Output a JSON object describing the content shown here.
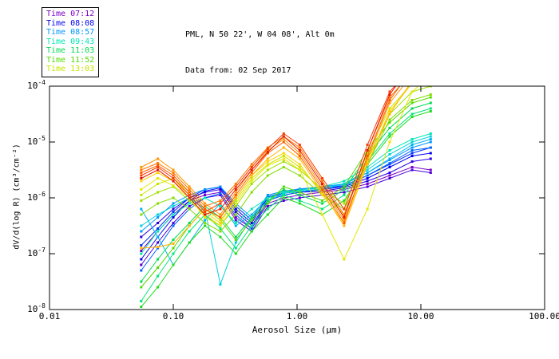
{
  "header": {
    "title": "PML, N 50 22', W 04 08', Alt 0m",
    "subtitle": "Data from: 02 Sep 2017"
  },
  "legend": {
    "entries": [
      {
        "label": "Time 07:12",
        "color": "#7A00C8"
      },
      {
        "label": "Time 08:08",
        "color": "#0000F0"
      },
      {
        "label": "Time 08:57",
        "color": "#0096FF"
      },
      {
        "label": "Time 09:43",
        "color": "#00E6B4"
      },
      {
        "label": "Time 11:03",
        "color": "#00DC50"
      },
      {
        "label": "Time 11:52",
        "color": "#50DC00"
      },
      {
        "label": "Time 13:03",
        "color": "#C8E600"
      }
    ]
  },
  "chart_data": {
    "type": "line",
    "title": "PML, N 50 22', W 04 08', Alt 0m",
    "subtitle": "Data from: 02 Sep 2017",
    "xlabel": "Aerosol Size (μm)",
    "ylabel": "dV/d(log R) (cm³/cm⁻²)",
    "x_scale": "log",
    "y_scale": "log",
    "xlim": [
      0.01,
      100.0
    ],
    "ylim": [
      1e-08,
      0.0001
    ],
    "x_tick_labels": [
      "0.01",
      "0.10",
      "1.00",
      "10.00",
      "100.00"
    ],
    "y_tick_labels": [
      "10^-4",
      "10^-5",
      "10^-6",
      "10^-7",
      "10^-8"
    ],
    "y_tick_exponents": [
      -4,
      -5,
      -6,
      -7,
      -8
    ],
    "grid": false,
    "legend_position": "outside-top-left",
    "marker": "square",
    "x_values": [
      0.055,
      0.075,
      0.1,
      0.135,
      0.18,
      0.24,
      0.32,
      0.43,
      0.58,
      0.78,
      1.05,
      1.6,
      2.4,
      3.7,
      5.6,
      8.5,
      12.0
    ],
    "series": [
      {
        "label": "Time 07:12",
        "color": "#7A00C8",
        "y_log10": [
          -6.95,
          -6.6,
          -6.3,
          -6.05,
          -5.95,
          -5.9,
          -6.35,
          -6.55,
          -6.1,
          -6.0,
          -5.95,
          -5.9,
          -5.85,
          -5.75,
          -5.6,
          -5.45,
          -5.5
        ]
      },
      {
        "label": "",
        "color": "#4B00DC",
        "y_log10": [
          -7.2,
          -6.8,
          -6.45,
          -6.15,
          -6.0,
          -5.95,
          -6.4,
          -6.6,
          -6.15,
          -6.05,
          -6.0,
          -5.95,
          -5.9,
          -5.8,
          -5.65,
          -5.5,
          -5.55
        ]
      },
      {
        "label": "",
        "color": "#2800E6",
        "y_log10": [
          -6.7,
          -6.45,
          -6.2,
          -6.0,
          -5.9,
          -5.85,
          -6.25,
          -6.5,
          -6.05,
          -5.95,
          -5.9,
          -5.88,
          -5.82,
          -5.7,
          -5.55,
          -5.35,
          -5.3
        ]
      },
      {
        "label": "Time 08:08",
        "color": "#0000F0",
        "y_log10": [
          -7.1,
          -6.7,
          -6.35,
          -6.05,
          -5.88,
          -5.82,
          -6.2,
          -6.45,
          -6.0,
          -5.92,
          -5.88,
          -5.85,
          -5.8,
          -5.65,
          -5.45,
          -5.25,
          -5.2
        ]
      },
      {
        "label": "",
        "color": "#0032FF",
        "y_log10": [
          -6.85,
          -6.55,
          -6.25,
          -6.0,
          -5.85,
          -5.8,
          -6.15,
          -6.4,
          -5.98,
          -5.9,
          -5.85,
          -5.82,
          -5.78,
          -5.6,
          -5.4,
          -5.2,
          -5.1
        ]
      },
      {
        "label": "",
        "color": "#0064FF",
        "y_log10": [
          -7.3,
          -6.9,
          -6.5,
          -6.2,
          -6.0,
          -5.92,
          -6.3,
          -6.55,
          -6.05,
          -5.95,
          -5.9,
          -5.85,
          -5.78,
          -5.6,
          -5.38,
          -5.15,
          -5.1
        ]
      },
      {
        "label": "Time 08:57",
        "color": "#0096FF",
        "y_log10": [
          -6.6,
          -6.35,
          -6.1,
          -5.95,
          -5.85,
          -5.8,
          -6.1,
          -6.35,
          -5.95,
          -5.88,
          -5.84,
          -5.8,
          -5.75,
          -5.55,
          -5.32,
          -5.1,
          -5.0
        ]
      },
      {
        "label": "",
        "color": "#00B4F0",
        "y_log10": [
          -6.2,
          -6.7,
          -7.2,
          -6.8,
          -6.4,
          -6.1,
          -6.5,
          -6.3,
          -6.0,
          -5.9,
          -5.86,
          -5.82,
          -5.76,
          -5.55,
          -5.3,
          -5.05,
          -4.95
        ]
      },
      {
        "label": "",
        "color": "#00D2DC",
        "y_log10": [
          -6.5,
          -6.3,
          -6.15,
          -6.0,
          -6.2,
          -7.55,
          -6.8,
          -6.35,
          -6.05,
          -5.92,
          -5.88,
          -5.84,
          -5.75,
          -5.5,
          -5.22,
          -5.0,
          -4.9
        ]
      },
      {
        "label": "Time 09:43",
        "color": "#00E6B4",
        "y_log10": [
          -7.0,
          -6.6,
          -6.3,
          -6.1,
          -6.0,
          -6.15,
          -6.45,
          -6.2,
          -6.0,
          -5.9,
          -5.86,
          -5.8,
          -5.7,
          -5.45,
          -5.15,
          -4.95,
          -4.85
        ]
      },
      {
        "label": "",
        "color": "#00E678",
        "y_log10": [
          -7.85,
          -7.4,
          -7.0,
          -6.6,
          -6.3,
          -6.55,
          -6.9,
          -6.5,
          -6.2,
          -5.95,
          -6.05,
          -6.2,
          -5.95,
          -5.35,
          -4.85,
          -4.5,
          -4.4
        ]
      },
      {
        "label": "Time 11:03",
        "color": "#00DC50",
        "y_log10": [
          -7.5,
          -7.1,
          -6.75,
          -6.45,
          -6.15,
          -6.35,
          -6.7,
          -6.35,
          -6.05,
          -5.85,
          -5.95,
          -6.1,
          -5.85,
          -5.25,
          -4.75,
          -4.4,
          -4.3
        ]
      },
      {
        "label": "",
        "color": "#1EDC1E",
        "y_log10": [
          -7.95,
          -7.6,
          -7.2,
          -6.8,
          -6.5,
          -6.7,
          -7.0,
          -6.6,
          -6.3,
          -6.0,
          -6.1,
          -6.3,
          -6.05,
          -5.4,
          -4.9,
          -4.55,
          -4.45
        ]
      },
      {
        "label": "Time 11:52",
        "color": "#50DC00",
        "y_log10": [
          -7.6,
          -7.25,
          -6.9,
          -6.5,
          -6.2,
          -6.4,
          -6.75,
          -6.4,
          -6.1,
          -5.8,
          -5.9,
          -6.05,
          -5.8,
          -5.15,
          -4.65,
          -4.3,
          -4.2
        ]
      },
      {
        "label": "",
        "color": "#82DC00",
        "y_log10": [
          -6.3,
          -6.1,
          -6.0,
          -6.2,
          -6.45,
          -6.6,
          -6.3,
          -5.9,
          -5.6,
          -5.45,
          -5.6,
          -5.95,
          -6.2,
          -5.4,
          -4.6,
          -4.25,
          -4.15
        ]
      },
      {
        "label": "",
        "color": "#A0E000",
        "y_log10": [
          -6.05,
          -5.9,
          -5.8,
          -6.05,
          -6.3,
          -6.5,
          -6.15,
          -5.75,
          -5.5,
          -5.35,
          -5.5,
          -5.85,
          -6.1,
          -5.3,
          -4.5,
          -4.1,
          -4.0
        ]
      },
      {
        "label": "Time 13:03",
        "color": "#C8E600",
        "y_log10": [
          -5.95,
          -5.75,
          -5.65,
          -5.9,
          -6.2,
          -6.4,
          -6.05,
          -5.65,
          -5.4,
          -5.25,
          -5.45,
          -5.9,
          -6.3,
          -5.2,
          -4.4,
          -3.95,
          -3.85
        ]
      },
      {
        "label": "",
        "color": "#E6E600",
        "y_log10": [
          -5.85,
          -5.65,
          -5.78,
          -6.0,
          -6.35,
          -6.5,
          -6.1,
          -5.7,
          -5.42,
          -5.3,
          -5.5,
          -6.3,
          -7.1,
          -6.2,
          -5.0,
          -4.1,
          -3.8
        ]
      },
      {
        "label": "",
        "color": "#FFD200",
        "y_log10": [
          -5.7,
          -5.55,
          -5.7,
          -5.95,
          -6.25,
          -6.45,
          -6.0,
          -5.6,
          -5.35,
          -5.2,
          -5.4,
          -5.95,
          -6.45,
          -5.35,
          -4.45,
          -3.95,
          -3.75
        ]
      },
      {
        "label": "",
        "color": "#FFB400",
        "y_log10": [
          -6.9,
          -6.88,
          -6.82,
          -6.5,
          -6.2,
          -6.35,
          -6.0,
          -5.6,
          -5.3,
          -5.1,
          -5.3,
          -5.9,
          -6.5,
          -5.4,
          -4.5,
          -3.9,
          -3.7
        ]
      },
      {
        "label": "",
        "color": "#FF9600",
        "y_log10": [
          -5.45,
          -5.3,
          -5.5,
          -5.8,
          -6.1,
          -6.3,
          -5.9,
          -5.5,
          -5.15,
          -4.95,
          -5.2,
          -5.8,
          -6.4,
          -5.3,
          -4.3,
          -3.8,
          -3.6
        ]
      },
      {
        "label": "",
        "color": "#FF7800",
        "y_log10": [
          -5.5,
          -5.38,
          -5.55,
          -5.85,
          -6.15,
          -6.05,
          -5.75,
          -5.4,
          -5.1,
          -4.9,
          -5.1,
          -5.7,
          -6.3,
          -5.15,
          -4.2,
          -3.75,
          -3.55
        ]
      },
      {
        "label": "",
        "color": "#FF5A00",
        "y_log10": [
          -5.55,
          -5.42,
          -5.6,
          -5.9,
          -6.2,
          -6.35,
          -5.95,
          -5.55,
          -5.2,
          -5.0,
          -5.25,
          -5.85,
          -6.45,
          -5.25,
          -4.25,
          -3.7,
          -3.5
        ]
      },
      {
        "label": "",
        "color": "#FA3C00",
        "y_log10": [
          -5.6,
          -5.45,
          -5.65,
          -5.95,
          -6.25,
          -6.1,
          -5.8,
          -5.45,
          -5.12,
          -4.85,
          -5.05,
          -5.65,
          -6.2,
          -5.05,
          -4.1,
          -3.65,
          -3.45
        ]
      },
      {
        "label": "",
        "color": "#E61400",
        "y_log10": [
          -5.65,
          -5.5,
          -5.7,
          -6.0,
          -6.3,
          -6.2,
          -5.85,
          -5.5,
          -5.18,
          -4.9,
          -5.15,
          -5.75,
          -6.35,
          -5.15,
          -4.15,
          -3.6,
          -3.4
        ]
      }
    ]
  }
}
